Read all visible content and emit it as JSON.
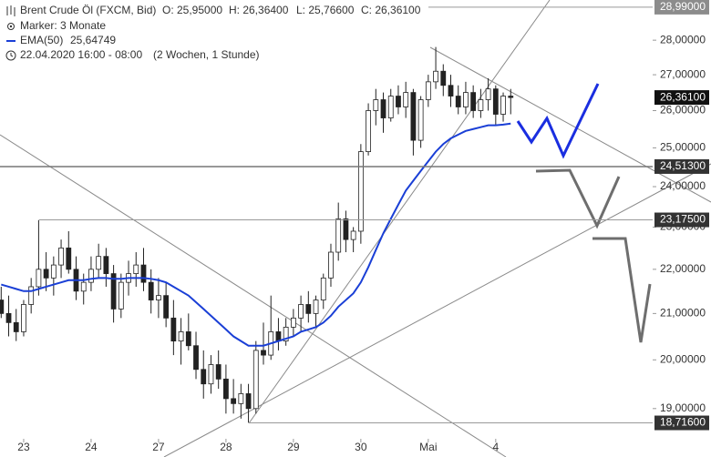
{
  "header": {
    "instrument": "Brent Crude Öl (FXCM, Bid)",
    "open": "O: 25,95000",
    "high": "H: 26,36400",
    "low": "L: 25,76600",
    "close": "C: 26,36100",
    "marker": "Marker: 3 Monate",
    "ema_name": "EMA(50)",
    "ema_value": "25,64749",
    "period": "22.04.2020 16:00 - 08:00",
    "interval": "(2 Wochen, 1 Stunde)"
  },
  "chart_data": {
    "type": "candlestick",
    "log_scale": true,
    "ylim": [
      18.37,
      29.21
    ],
    "yticks": [
      {
        "value": 19,
        "label": "19,00000"
      },
      {
        "value": 20,
        "label": "20,00000"
      },
      {
        "value": 21,
        "label": "21,00000"
      },
      {
        "value": 22,
        "label": "22,00000"
      },
      {
        "value": 23,
        "label": "23,00000"
      },
      {
        "value": 24,
        "label": "24,00000"
      },
      {
        "value": 25,
        "label": "25,00000"
      },
      {
        "value": 26,
        "label": "26,00000"
      },
      {
        "value": 27,
        "label": "27,00000"
      },
      {
        "value": 28,
        "label": "28,00000"
      }
    ],
    "categories": [
      null,
      null,
      null,
      "23",
      null,
      null,
      null,
      null,
      null,
      null,
      null,
      null,
      "24",
      null,
      null,
      null,
      null,
      null,
      null,
      null,
      null,
      "27",
      null,
      null,
      null,
      null,
      null,
      null,
      null,
      null,
      "28",
      null,
      null,
      null,
      null,
      null,
      null,
      null,
      null,
      "29",
      null,
      null,
      null,
      null,
      null,
      null,
      null,
      null,
      "30",
      null,
      null,
      null,
      null,
      null,
      null,
      null,
      null,
      "Mai",
      null,
      null,
      null,
      null,
      null,
      null,
      null,
      null,
      "4",
      null,
      null
    ],
    "open": [
      21.3,
      21.0,
      20.8,
      20.6,
      21.2,
      21.6,
      22.0,
      21.8,
      22.1,
      22.5,
      22.0,
      21.5,
      21.7,
      22.0,
      22.3,
      21.9,
      21.1,
      21.7,
      21.9,
      22.1,
      21.7,
      21.3,
      21.4,
      20.9,
      20.4,
      20.6,
      20.3,
      19.8,
      19.5,
      19.9,
      19.6,
      19.2,
      19.1,
      19.3,
      19.0,
      20.2,
      20.1,
      20.6,
      20.4,
      20.7,
      20.9,
      21.2,
      21.0,
      21.3,
      21.8,
      22.4,
      23.2,
      22.7,
      22.9,
      24.9,
      26.0,
      26.3,
      25.8,
      26.4,
      26.1,
      26.5,
      25.2,
      26.3,
      26.8,
      27.1,
      26.7,
      26.4,
      26.1,
      26.5,
      26.0,
      26.3,
      26.6,
      25.9,
      26.4
    ],
    "high": [
      21.6,
      21.4,
      21.1,
      21.3,
      21.8,
      23.17,
      22.4,
      22.3,
      22.7,
      22.9,
      22.3,
      21.9,
      22.3,
      22.6,
      22.5,
      22.1,
      21.9,
      22.2,
      22.4,
      22.5,
      22.0,
      21.8,
      21.7,
      21.3,
      20.9,
      21.0,
      20.6,
      20.2,
      20.1,
      20.2,
      19.9,
      19.6,
      19.5,
      19.5,
      20.4,
      20.8,
      21.4,
      20.9,
      20.9,
      21.1,
      21.4,
      21.5,
      21.4,
      21.9,
      22.6,
      23.6,
      23.4,
      23.0,
      25.1,
      26.2,
      26.6,
      26.5,
      26.6,
      26.7,
      26.8,
      26.6,
      26.4,
      27.0,
      27.8,
      27.3,
      27.0,
      26.7,
      26.8,
      26.7,
      26.6,
      26.9,
      26.7,
      26.5,
      26.6
    ],
    "low": [
      20.9,
      20.5,
      20.4,
      20.5,
      21.0,
      21.4,
      21.5,
      21.4,
      21.8,
      21.9,
      21.3,
      21.2,
      21.5,
      21.8,
      21.6,
      20.8,
      20.9,
      21.4,
      21.6,
      21.5,
      21.0,
      20.9,
      20.7,
      20.1,
      19.9,
      20.2,
      19.6,
      19.2,
      19.3,
      19.4,
      18.9,
      18.9,
      18.8,
      18.72,
      18.9,
      19.9,
      20.0,
      20.2,
      20.3,
      20.5,
      20.6,
      20.8,
      20.7,
      21.1,
      21.6,
      22.2,
      22.4,
      22.4,
      22.6,
      24.8,
      25.6,
      25.4,
      25.7,
      25.9,
      25.8,
      24.8,
      25.0,
      26.1,
      26.6,
      26.4,
      26.1,
      25.9,
      25.9,
      25.8,
      25.8,
      26.0,
      25.6,
      25.7,
      25.9
    ],
    "close": [
      21.0,
      20.8,
      20.6,
      21.2,
      21.6,
      22.0,
      21.8,
      22.1,
      22.5,
      22.0,
      21.5,
      21.7,
      22.0,
      22.3,
      21.9,
      21.1,
      21.7,
      21.9,
      22.1,
      21.7,
      21.3,
      21.4,
      20.9,
      20.4,
      20.6,
      20.3,
      19.8,
      19.5,
      19.9,
      19.6,
      19.2,
      19.1,
      19.3,
      19.0,
      20.2,
      20.1,
      20.6,
      20.4,
      20.7,
      20.9,
      21.2,
      21.0,
      21.3,
      21.8,
      22.4,
      23.2,
      22.7,
      22.9,
      24.9,
      26.0,
      26.3,
      25.8,
      26.4,
      26.1,
      26.5,
      25.2,
      26.3,
      26.8,
      27.1,
      26.7,
      26.4,
      26.1,
      26.5,
      26.0,
      26.3,
      26.6,
      25.9,
      26.4,
      26.361
    ],
    "ema": {
      "color": "#1a3fd6",
      "values": [
        21.65,
        21.6,
        21.55,
        21.5,
        21.5,
        21.55,
        21.6,
        21.65,
        21.7,
        21.75,
        21.75,
        21.75,
        21.78,
        21.8,
        21.8,
        21.78,
        21.78,
        21.8,
        21.8,
        21.8,
        21.78,
        21.75,
        21.7,
        21.6,
        21.5,
        21.4,
        21.25,
        21.1,
        20.95,
        20.8,
        20.65,
        20.5,
        20.4,
        20.3,
        20.3,
        20.3,
        20.35,
        20.4,
        20.45,
        20.5,
        20.6,
        20.65,
        20.7,
        20.8,
        20.95,
        21.15,
        21.3,
        21.45,
        21.7,
        22.05,
        22.45,
        22.85,
        23.2,
        23.55,
        23.9,
        24.15,
        24.4,
        24.65,
        24.9,
        25.1,
        25.25,
        25.35,
        25.45,
        25.5,
        25.55,
        25.6,
        25.6,
        25.62,
        25.647
      ]
    },
    "levels": [
      {
        "value": 28.99,
        "label": "28,99000",
        "color": "#8c8c8c"
      },
      {
        "value": 26.361,
        "label": "26,36100",
        "color": "#111111"
      },
      {
        "value": 24.513,
        "label": "24,51300",
        "color": "#333333"
      },
      {
        "value": 23.175,
        "label": "23,17500",
        "color": "#333333"
      },
      {
        "value": 18.716,
        "label": "18,71600",
        "color": "#333333"
      }
    ]
  }
}
